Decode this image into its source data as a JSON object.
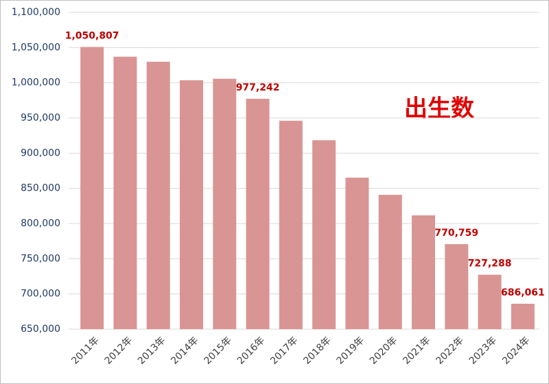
{
  "chart_data": {
    "type": "bar",
    "annotation": "出生数",
    "categories": [
      "2011年",
      "2012年",
      "2013年",
      "2014年",
      "2015年",
      "2016年",
      "2017年",
      "2018年",
      "2019年",
      "2020年",
      "2021年",
      "2022年",
      "2023年",
      "2024年"
    ],
    "values": [
      1050807,
      1037000,
      1029800,
      1003500,
      1005700,
      977242,
      946000,
      918400,
      865200,
      840800,
      811600,
      770759,
      727288,
      686061
    ],
    "value_labels": [
      "1,050,807",
      null,
      null,
      null,
      null,
      "977,242",
      null,
      null,
      null,
      null,
      null,
      "770,759",
      "727,288",
      "686,061"
    ],
    "color": "#d99594",
    "ylim": [
      650000,
      1100000
    ],
    "yticks": [
      {
        "value": 650000,
        "label": "650,000"
      },
      {
        "value": 700000,
        "label": "700,000"
      },
      {
        "value": 750000,
        "label": "750,000"
      },
      {
        "value": 800000,
        "label": "800,000"
      },
      {
        "value": 850000,
        "label": "850,000"
      },
      {
        "value": 900000,
        "label": "900,000"
      },
      {
        "value": 950000,
        "label": "950,000"
      },
      {
        "value": 1000000,
        "label": "1,000,000"
      },
      {
        "value": 1050000,
        "label": "1,050,000"
      },
      {
        "value": 1100000,
        "label": "1,100,000"
      }
    ],
    "grid": true
  }
}
